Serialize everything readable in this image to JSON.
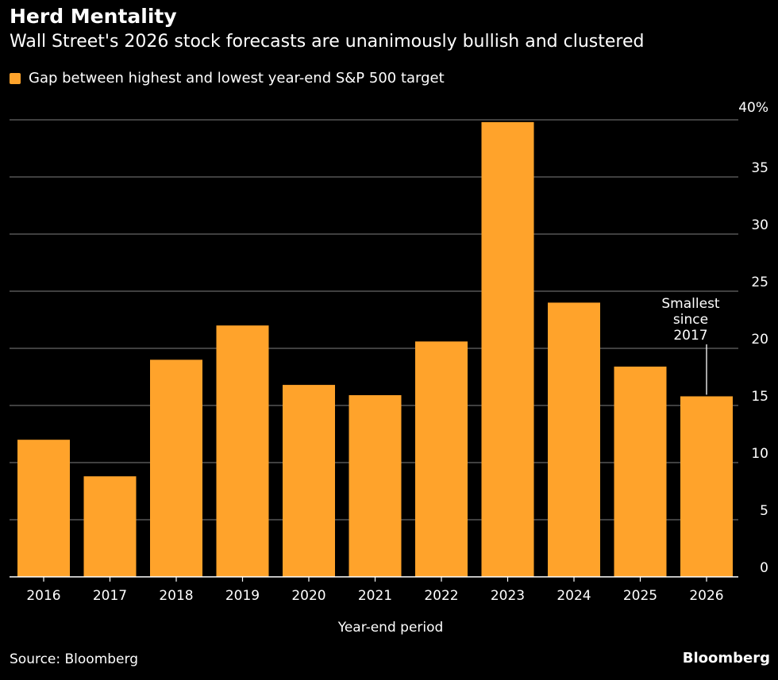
{
  "header": {
    "title": "Herd Mentality",
    "subtitle": "Wall Street's 2026 stock forecasts are unanimously bullish and clustered"
  },
  "footer": {
    "source": "Source: Bloomberg",
    "brand": "Bloomberg"
  },
  "colors": {
    "background": "#000000",
    "bar": "#ffa32b",
    "grid": "#555555",
    "text": "#ffffff"
  },
  "chart_data": {
    "type": "bar",
    "categories": [
      "2016",
      "2017",
      "2018",
      "2019",
      "2020",
      "2021",
      "2022",
      "2023",
      "2024",
      "2025",
      "2026"
    ],
    "series": [
      {
        "name": "Gap between highest and lowest year-end S&P 500 target",
        "values": [
          12,
          8.8,
          19,
          22,
          16.8,
          15.9,
          20.6,
          39.8,
          24,
          18.4,
          15.8
        ]
      }
    ],
    "xlabel": "Year-end period",
    "ylabel": "",
    "ylim": [
      0,
      40
    ],
    "yticks": [
      0,
      5,
      10,
      15,
      20,
      25,
      30,
      35,
      40
    ],
    "ytick_labels": [
      "0",
      "5",
      "10",
      "15",
      "20",
      "25",
      "30",
      "35",
      "40%"
    ],
    "y_axis_side": "right",
    "grid": true,
    "legend": "top-left",
    "annotations": [
      {
        "category": "2026",
        "text_lines": [
          "Smallest",
          "since",
          "2017"
        ]
      }
    ]
  }
}
